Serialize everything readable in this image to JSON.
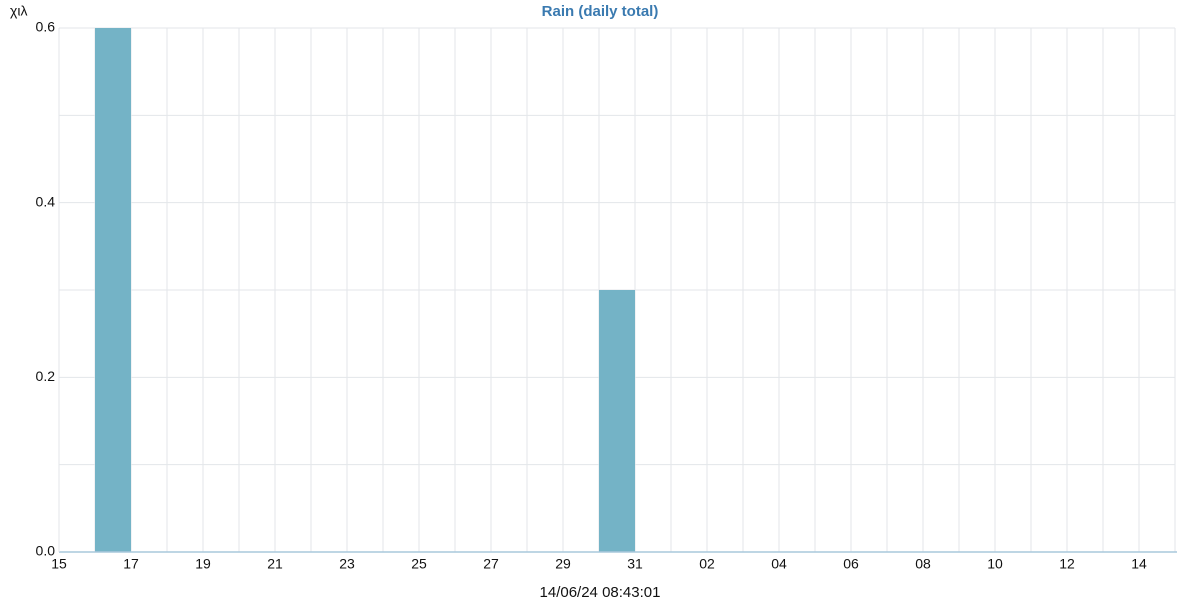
{
  "chart_data": {
    "type": "bar",
    "title": "Rain (daily total)",
    "y_unit": "χιλ",
    "x_label": "14/06/24 08:43:01",
    "categories": [
      "15",
      null,
      "17",
      null,
      "19",
      null,
      "21",
      null,
      "23",
      null,
      "25",
      null,
      "27",
      null,
      "29",
      null,
      "31",
      null,
      "02",
      null,
      "04",
      null,
      "06",
      null,
      "08",
      null,
      "10",
      null,
      "12",
      null,
      "14"
    ],
    "values": [
      0,
      0.6,
      0,
      0,
      0,
      0,
      0,
      0,
      0,
      0,
      0,
      0,
      0,
      0,
      0,
      0.3,
      0,
      0,
      0,
      0,
      0,
      0,
      0,
      0,
      0,
      0,
      0,
      0,
      0,
      0,
      0
    ],
    "color": "#74b3c6",
    "ylim": [
      0,
      0.6
    ],
    "yticks": [
      {
        "value": 0,
        "label": "0.0"
      },
      0.2,
      0.4,
      0.6
    ],
    "yminor": [
      0.1,
      0.3,
      0.5
    ],
    "grid": true
  }
}
